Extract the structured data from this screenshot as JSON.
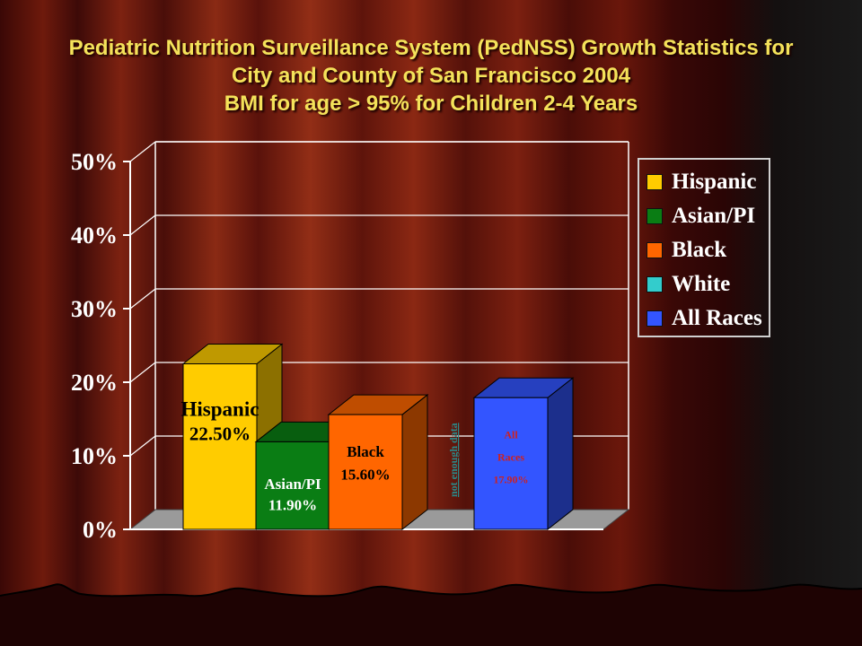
{
  "title": {
    "line1": "Pediatric Nutrition Surveillance System (PedNSS) Growth Statistics for",
    "line2": "City and County of San Francisco 2004",
    "line3": "BMI for age > 95% for Children 2-4 Years"
  },
  "chart_data": {
    "type": "bar",
    "categories": [
      "Hispanic",
      "Asian/PI",
      "Black",
      "White",
      "All Races"
    ],
    "values": [
      22.5,
      11.9,
      15.6,
      null,
      17.9
    ],
    "data_labels": [
      [
        "Hispanic",
        "22.50%"
      ],
      [
        "Asian/PI",
        "11.90%"
      ],
      [
        "Black",
        "15.60%"
      ],
      [
        "not enough data"
      ],
      [
        "All",
        "Races",
        "17.90%"
      ]
    ],
    "colors": [
      "#ffcc00",
      "#0a7d14",
      "#ff6600",
      "#33cccc",
      "#3355ff"
    ],
    "ylim": [
      0,
      50
    ],
    "yticks": [
      "0%",
      "10%",
      "20%",
      "30%",
      "40%",
      "50%"
    ],
    "grid": true,
    "legend_position": "right",
    "style": "3d"
  },
  "legend": {
    "items": [
      {
        "label": "Hispanic",
        "color": "#ffcc00"
      },
      {
        "label": "Asian/PI",
        "color": "#0a7d14"
      },
      {
        "label": "Black",
        "color": "#ff6600"
      },
      {
        "label": "White",
        "color": "#33cccc"
      },
      {
        "label": "All Races",
        "color": "#3355ff"
      }
    ]
  }
}
